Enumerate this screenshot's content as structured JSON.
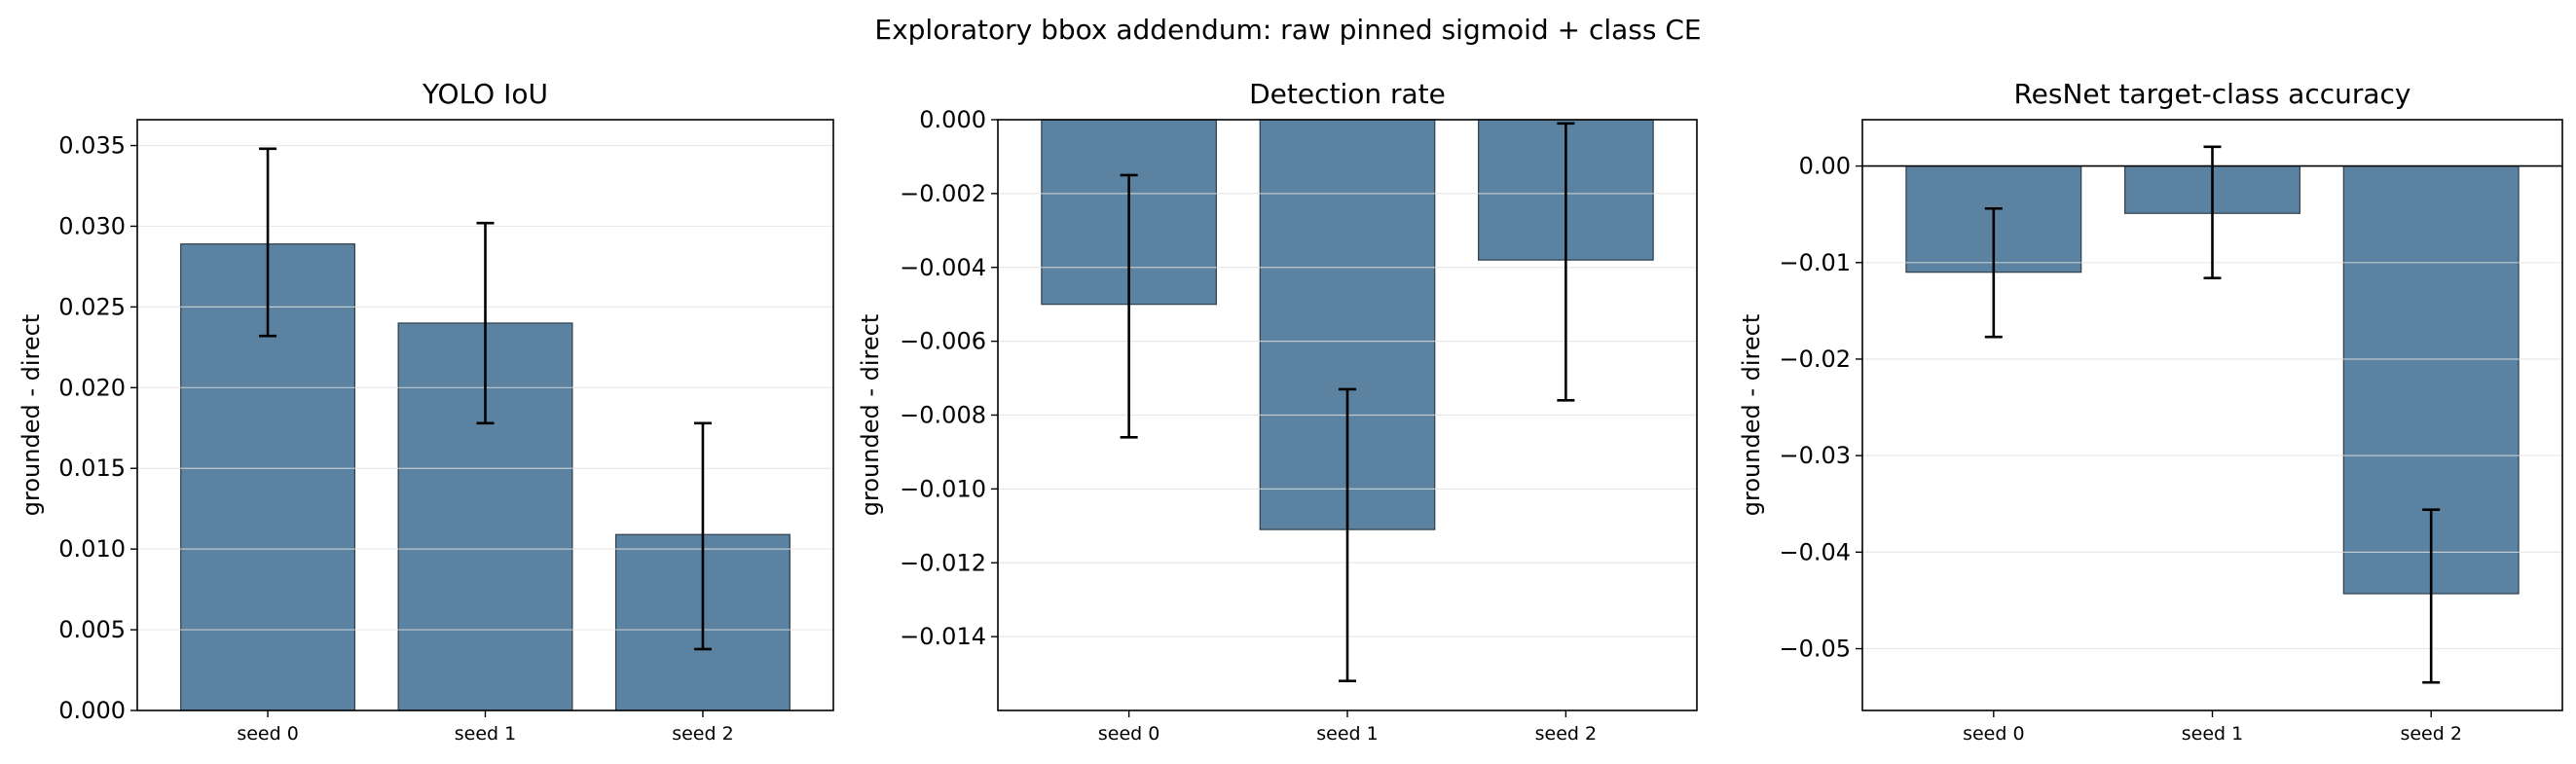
{
  "figure": {
    "title": "Exploratory bbox addendum: raw pinned sigmoid + class CE"
  },
  "colors": {
    "bar": "#5b82a1",
    "bar_edge": "#2f3f4c",
    "error": "#000000",
    "grid": "#e0e0e0"
  },
  "chart_data": [
    {
      "type": "bar",
      "title": "YOLO IoU",
      "ylabel": "grounded - direct",
      "categories": [
        "seed 0",
        "seed 1",
        "seed 2"
      ],
      "values": [
        0.0289,
        0.024,
        0.0109
      ],
      "errors": [
        [
          0.0232,
          0.0348
        ],
        [
          0.0178,
          0.0302
        ],
        [
          0.0038,
          0.0178
        ]
      ],
      "ylim": [
        0.0,
        0.0366
      ],
      "yticks": [
        0.0,
        0.005,
        0.01,
        0.015,
        0.02,
        0.025,
        0.03,
        0.035
      ],
      "ytick_labels": [
        "0.000",
        "0.005",
        "0.010",
        "0.015",
        "0.020",
        "0.025",
        "0.030",
        "0.035"
      ],
      "grid": true,
      "zero_line": false
    },
    {
      "type": "bar",
      "title": "Detection rate",
      "ylabel": "grounded - direct",
      "categories": [
        "seed 0",
        "seed 1",
        "seed 2"
      ],
      "values": [
        -0.005,
        -0.0111,
        -0.0038
      ],
      "errors": [
        [
          -0.0086,
          -0.0015
        ],
        [
          -0.0152,
          -0.0073
        ],
        [
          -0.0076,
          -0.0001
        ]
      ],
      "ylim": [
        -0.016,
        0.0
      ],
      "yticks": [
        0.0,
        -0.002,
        -0.004,
        -0.006,
        -0.008,
        -0.01,
        -0.012,
        -0.014
      ],
      "ytick_labels": [
        "0.000",
        "−0.002",
        "−0.004",
        "−0.006",
        "−0.008",
        "−0.010",
        "−0.012",
        "−0.014"
      ],
      "grid": true,
      "zero_line": false
    },
    {
      "type": "bar",
      "title": "ResNet target-class accuracy",
      "ylabel": "grounded - direct",
      "categories": [
        "seed 0",
        "seed 1",
        "seed 2"
      ],
      "values": [
        -0.011,
        -0.0049,
        -0.0443
      ],
      "errors": [
        [
          -0.0177,
          -0.0044
        ],
        [
          -0.0116,
          0.002
        ],
        [
          -0.0535,
          -0.0356
        ]
      ],
      "ylim": [
        -0.0564,
        0.0048
      ],
      "yticks": [
        0.0,
        -0.01,
        -0.02,
        -0.03,
        -0.04,
        -0.05
      ],
      "ytick_labels": [
        "0.00",
        "−0.01",
        "−0.02",
        "−0.03",
        "−0.04",
        "−0.05"
      ],
      "grid": true,
      "zero_line": true
    }
  ]
}
